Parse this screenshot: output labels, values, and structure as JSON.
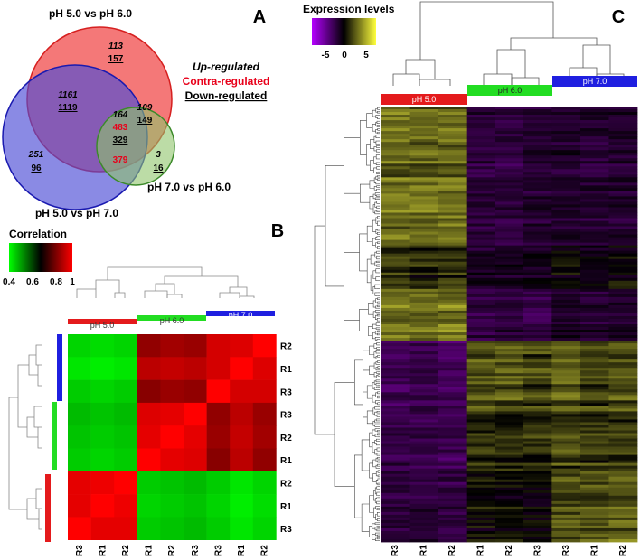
{
  "panels": {
    "a": "A",
    "b": "B",
    "c": "C"
  },
  "venn": {
    "circle_top_label": "pH 5.0 vs pH 6.0",
    "circle_left_label": "pH 5.0 vs pH 7.0",
    "circle_right_label": "pH 7.0 vs pH 6.0",
    "legend": {
      "up": "Up-regulated",
      "contra": "Contra-regulated",
      "down": "Down-regulated"
    },
    "colors": {
      "top": "#f26060",
      "left": "#4b4bd6",
      "right": "#8fc46a",
      "contra_text": "#e8001a"
    },
    "regions": {
      "top_only": {
        "up": "113",
        "down": "157"
      },
      "top_left": {
        "up": "1161",
        "down": "1119"
      },
      "top_right": {
        "up": "109",
        "down": "149"
      },
      "center": {
        "up": "164",
        "contra": "483",
        "down": "329"
      },
      "left_right_contra": "379",
      "left_only": {
        "up": "251",
        "down": "96"
      },
      "right_only": {
        "up": "3",
        "down": "16"
      }
    }
  },
  "correlation": {
    "title": "Correlation",
    "ticks": [
      "0.4",
      "0.6",
      "0.8",
      "1"
    ],
    "group_labels": [
      "pH 5.0",
      "pH 6.0",
      "pH 7.0"
    ],
    "group_colors": [
      "#e41a1c",
      "#22dd22",
      "#1f1fe0"
    ],
    "col_labels": [
      "R3",
      "R1",
      "R2",
      "R1",
      "R2",
      "R3",
      "R3",
      "R1",
      "R2"
    ],
    "row_labels": [
      "R2",
      "R1",
      "R3",
      "R3",
      "R2",
      "R1",
      "R2",
      "R1",
      "R3"
    ],
    "matrix": [
      [
        0.45,
        0.44,
        0.45,
        0.87,
        0.89,
        0.88,
        0.95,
        0.96,
        1.0
      ],
      [
        0.43,
        0.42,
        0.43,
        0.92,
        0.93,
        0.92,
        0.95,
        1.0,
        0.96
      ],
      [
        0.46,
        0.45,
        0.46,
        0.86,
        0.88,
        0.87,
        1.0,
        0.95,
        0.95
      ],
      [
        0.48,
        0.47,
        0.48,
        0.96,
        0.97,
        1.0,
        0.87,
        0.92,
        0.88
      ],
      [
        0.47,
        0.46,
        0.47,
        0.97,
        1.0,
        0.97,
        0.88,
        0.93,
        0.89
      ],
      [
        0.46,
        0.45,
        0.46,
        1.0,
        0.97,
        0.96,
        0.86,
        0.92,
        0.87
      ],
      [
        0.97,
        0.98,
        1.0,
        0.46,
        0.47,
        0.48,
        0.46,
        0.43,
        0.45
      ],
      [
        0.97,
        1.0,
        0.98,
        0.45,
        0.46,
        0.47,
        0.45,
        0.42,
        0.44
      ],
      [
        1.0,
        0.97,
        0.97,
        0.46,
        0.47,
        0.48,
        0.46,
        0.43,
        0.45
      ]
    ]
  },
  "expression": {
    "title": "Expression levels",
    "ticks": [
      "-5",
      "0",
      "5"
    ],
    "range": [
      -7,
      7
    ],
    "group_labels": [
      "pH 5.0",
      "pH 6.0",
      "pH 7.0"
    ],
    "group_colors": [
      "#e41a1c",
      "#22dd22",
      "#1f1fe0"
    ],
    "col_labels": [
      "R3",
      "R1",
      "R2",
      "R1",
      "R2",
      "R3",
      "R3",
      "R1",
      "R2"
    ],
    "blocks": [
      {
        "share": 0.32,
        "levels": [
          3.2,
          3.0,
          3.2,
          -2.0,
          -2.2,
          -1.8,
          -1.5,
          -1.8,
          -1.6
        ]
      },
      {
        "share": 0.1,
        "levels": [
          1.2,
          1.0,
          1.3,
          -1.4,
          -1.2,
          -1.0,
          0.2,
          -0.6,
          0.0
        ]
      },
      {
        "share": 0.12,
        "levels": [
          3.6,
          3.4,
          3.8,
          -2.2,
          -2.0,
          -2.4,
          -1.2,
          -1.6,
          -1.4
        ]
      },
      {
        "share": 0.16,
        "levels": [
          -3.0,
          -2.8,
          -3.2,
          2.2,
          2.4,
          2.0,
          2.6,
          1.8,
          2.2
        ]
      },
      {
        "share": 0.14,
        "levels": [
          -2.6,
          -2.4,
          -2.8,
          1.2,
          1.0,
          1.4,
          2.0,
          1.6,
          1.8
        ]
      },
      {
        "share": 0.16,
        "levels": [
          -2.0,
          -1.8,
          -2.2,
          0.2,
          0.0,
          -0.2,
          2.2,
          2.4,
          2.8
        ]
      }
    ]
  }
}
